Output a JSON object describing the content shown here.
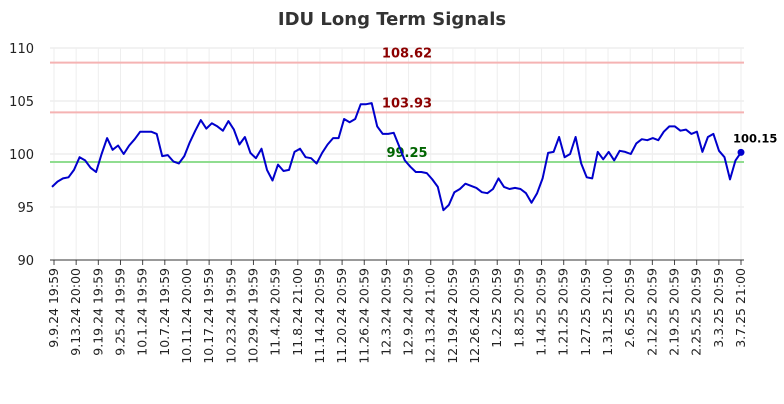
{
  "chart_data": {
    "type": "line",
    "title": "IDU Long Term Signals",
    "ylim": [
      90,
      110
    ],
    "yticks": [
      90,
      95,
      100,
      105,
      110
    ],
    "grid": true,
    "x_tick_labels": [
      "9.9.24 19:59",
      "9.13.24 20:00",
      "9.19.24 19:59",
      "9.25.24 19:59",
      "10.1.24 19:59",
      "10.7.24 19:59",
      "10.11.24 20:00",
      "10.17.24 19:59",
      "10.23.24 19:59",
      "10.29.24 19:59",
      "11.4.24 20:59",
      "11.8.24 21:00",
      "11.14.24 20:59",
      "11.20.24 20:59",
      "11.26.24 20:59",
      "12.3.24 20:59",
      "12.9.24 20:59",
      "12.13.24 21:00",
      "12.19.24 20:59",
      "12.26.24 20:59",
      "1.2.25 20:59",
      "1.8.25 20:59",
      "1.14.25 20:59",
      "1.21.25 20:59",
      "1.27.25 20:59",
      "1.31.25 21:00",
      "2.6.25 20:59",
      "2.12.25 20:59",
      "2.19.25 20:59",
      "2.25.25 20:59",
      "3.3.25 20:59",
      "3.7.25 21:00"
    ],
    "series": [
      {
        "color": "#0000cc",
        "values": [
          96.9,
          97.4,
          97.7,
          97.8,
          98.5,
          99.7,
          99.4,
          98.7,
          98.3,
          100.0,
          101.5,
          100.4,
          100.8,
          100.0,
          100.8,
          101.4,
          102.1,
          102.1,
          102.1,
          101.9,
          99.8,
          99.9,
          99.3,
          99.1,
          99.8,
          101.1,
          102.2,
          103.2,
          102.4,
          102.9,
          102.6,
          102.2,
          103.1,
          102.3,
          100.9,
          101.6,
          100.1,
          99.6,
          100.5,
          98.5,
          97.5,
          99.0,
          98.4,
          98.5,
          100.2,
          100.5,
          99.7,
          99.6,
          99.1,
          100.1,
          100.9,
          101.5,
          101.5,
          103.3,
          103.0,
          103.3,
          104.7,
          104.7,
          104.8,
          102.6,
          101.9,
          101.9,
          102.0,
          100.7,
          99.4,
          98.8,
          98.3,
          98.3,
          98.2,
          97.6,
          96.9,
          94.7,
          95.2,
          96.4,
          96.7,
          97.2,
          97.0,
          96.8,
          96.4,
          96.3,
          96.7,
          97.7,
          96.9,
          96.7,
          96.8,
          96.7,
          96.3,
          95.4,
          96.3,
          97.7,
          100.1,
          100.2,
          101.6,
          99.7,
          100.0,
          101.6,
          99.1,
          97.8,
          97.7,
          100.2,
          99.5,
          100.2,
          99.4,
          100.3,
          100.2,
          100.0,
          101.0,
          101.4,
          101.3,
          101.5,
          101.3,
          102.1,
          102.6,
          102.6,
          102.2,
          102.3,
          101.9,
          102.1,
          100.2,
          101.6,
          101.9,
          100.3,
          99.7,
          97.6,
          99.4,
          100.15
        ]
      }
    ],
    "hlines": [
      {
        "value": 108.62,
        "label": "108.62",
        "line_color": "#f5b3b3",
        "text_color": "#8b0000"
      },
      {
        "value": 103.93,
        "label": "103.93",
        "line_color": "#f5b3b3",
        "text_color": "#8b0000"
      },
      {
        "value": 99.25,
        "label": "99.25",
        "line_color": "#90dd90",
        "text_color": "#006400"
      }
    ],
    "last_value": {
      "value": 100.15,
      "label": "100.15"
    }
  }
}
